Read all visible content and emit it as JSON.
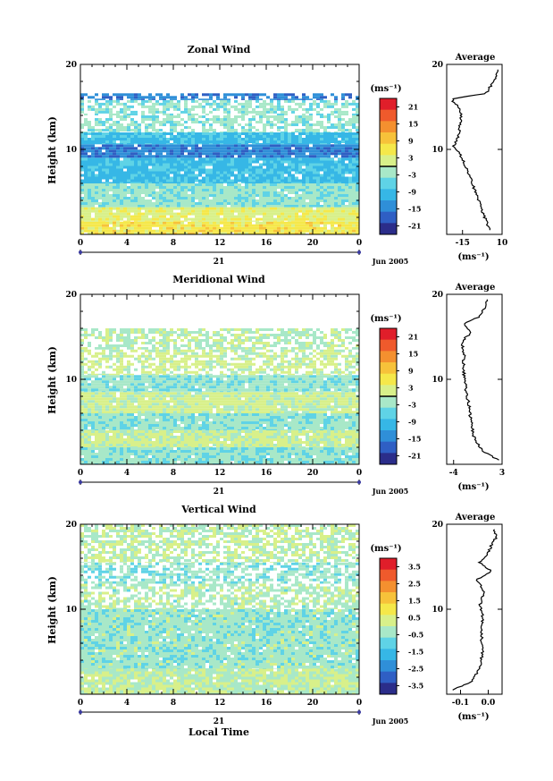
{
  "figure": {
    "xlabel": "Local Time",
    "day_label": "21",
    "month_label": "Jun 2005",
    "ylabel": "Height (km)",
    "unit_label": "(ms⁻¹)",
    "avg_xlabel": "(ms⁻¹)",
    "colors": [
      "#2b2d8a",
      "#2f5fc4",
      "#2f8fd8",
      "#36b7e6",
      "#5fd3e6",
      "#a8e8c8",
      "#d8f08a",
      "#f5e84a",
      "#f7c23a",
      "#f4902f",
      "#ef5a2c",
      "#e01e2a"
    ]
  },
  "chart_data": [
    {
      "type": "heatmap",
      "title": "Zonal Wind",
      "x_ticks": [
        "0",
        "4",
        "8",
        "12",
        "16",
        "20",
        "0"
      ],
      "y_ticks": [
        "10",
        "20"
      ],
      "ylim": [
        0,
        20
      ],
      "xlim": [
        0,
        24
      ],
      "colorbar_ticks": [
        "21",
        "15",
        "9",
        "3",
        "-3",
        "-9",
        "-15",
        "-21"
      ],
      "colorbar_range": [
        -24,
        24
      ],
      "colorbar_contour": 0,
      "layers": [
        {
          "z": [
            0,
            1.5
          ],
          "value": 6
        },
        {
          "z": [
            1.5,
            3.2
          ],
          "value": 3
        },
        {
          "z": [
            3.2,
            6
          ],
          "value": -3
        },
        {
          "z": [
            6,
            9
          ],
          "value": -9
        },
        {
          "z": [
            9,
            10.6
          ],
          "value": -15
        },
        {
          "z": [
            10.6,
            12
          ],
          "value": -9
        },
        {
          "z": [
            12,
            14
          ],
          "value": -3
        },
        {
          "z": [
            14,
            15.8
          ],
          "value": -3
        },
        {
          "z": [
            15.8,
            16.6
          ],
          "value": -15
        }
      ],
      "average": {
        "title": "Average",
        "xticks": [
          "-15",
          "10"
        ],
        "xlim": [
          -25,
          10
        ],
        "z": [
          0.5,
          2,
          4,
          6,
          8,
          9.5,
          10.3,
          11,
          12,
          13,
          14,
          15,
          15.7,
          16,
          16.6,
          17.5,
          18.5,
          19.5
        ],
        "value": [
          2,
          -1,
          -5,
          -9,
          -13,
          -17,
          -21,
          -19,
          -17,
          -16.5,
          -16,
          -17,
          -22,
          -20,
          0,
          3,
          6,
          7
        ]
      }
    },
    {
      "type": "heatmap",
      "title": "Meridional Wind",
      "x_ticks": [
        "0",
        "4",
        "8",
        "12",
        "16",
        "20",
        "0"
      ],
      "y_ticks": [
        "10",
        "20"
      ],
      "ylim": [
        0,
        20
      ],
      "xlim": [
        0,
        24
      ],
      "colorbar_ticks": [
        "21",
        "15",
        "9",
        "3",
        "-3",
        "-9",
        "-15",
        "-21"
      ],
      "colorbar_range": [
        -24,
        24
      ],
      "colorbar_contour": 0,
      "layers": [
        {
          "z": [
            0,
            2
          ],
          "value": -3
        },
        {
          "z": [
            2,
            4
          ],
          "value": 1
        },
        {
          "z": [
            4,
            6
          ],
          "value": -3
        },
        {
          "z": [
            6,
            8.5
          ],
          "value": 1
        },
        {
          "z": [
            8.5,
            10.5
          ],
          "value": -3
        },
        {
          "z": [
            10.5,
            13.5
          ],
          "value": 1
        },
        {
          "z": [
            13.5,
            16
          ],
          "value": -1
        }
      ],
      "average": {
        "title": "Average",
        "xticks": [
          "-4",
          "3"
        ],
        "xlim": [
          -5,
          3
        ],
        "z": [
          0.5,
          1.5,
          3,
          5,
          7,
          8.5,
          10,
          11.5,
          13,
          14.5,
          15.5,
          16.5,
          17.5,
          18.5,
          19.5
        ],
        "value": [
          2.5,
          0.3,
          -1,
          -1.5,
          -1.8,
          -2.2,
          -2.4,
          -2.6,
          -2.5,
          -2.8,
          -1.5,
          -2.5,
          0,
          0.5,
          1
        ]
      }
    },
    {
      "type": "heatmap",
      "title": "Vertical Wind",
      "x_ticks": [
        "0",
        "4",
        "8",
        "12",
        "16",
        "20",
        "0"
      ],
      "y_ticks": [
        "10",
        "20"
      ],
      "ylim": [
        0,
        20
      ],
      "xlim": [
        0,
        24
      ],
      "colorbar_ticks": [
        "3.5",
        "2.5",
        "1.5",
        "0.5",
        "-0.5",
        "-1.5",
        "-2.5",
        "-3.5"
      ],
      "colorbar_range": [
        -4,
        4
      ],
      "colorbar_contour": null,
      "layers": [
        {
          "z": [
            0,
            3
          ],
          "value": 0
        },
        {
          "z": [
            3,
            10
          ],
          "value": -0.4
        },
        {
          "z": [
            10,
            13
          ],
          "value": -0.2
        },
        {
          "z": [
            13,
            15.5
          ],
          "value": -0.5
        },
        {
          "z": [
            15.5,
            20
          ],
          "value": 0
        }
      ],
      "average": {
        "title": "Average",
        "xticks": [
          "-0.1",
          "0.0"
        ],
        "xlim": [
          -0.15,
          0.05
        ],
        "z": [
          0.5,
          1.5,
          3,
          5,
          7,
          9,
          10.5,
          12,
          13.5,
          14.5,
          15.5,
          16.5,
          17.5,
          18.5,
          19.5
        ],
        "value": [
          -0.13,
          -0.06,
          -0.03,
          -0.02,
          -0.025,
          -0.02,
          -0.03,
          -0.015,
          -0.04,
          0.01,
          -0.03,
          0.0,
          0.01,
          0.03,
          0.02
        ]
      }
    }
  ]
}
